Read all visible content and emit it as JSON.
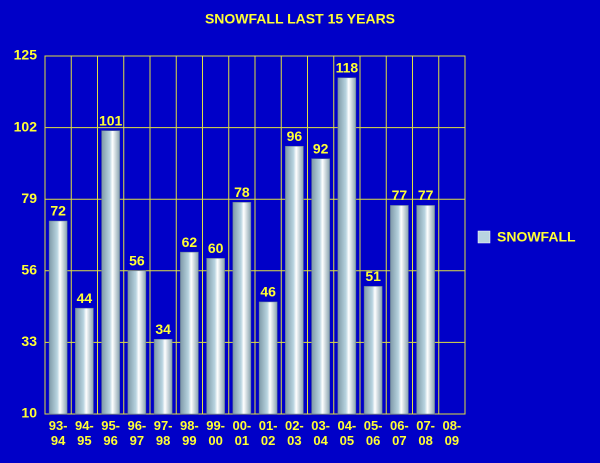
{
  "chart_data": {
    "type": "bar",
    "title": "SNOWFALL LAST 15 YEARS",
    "categories": [
      "93-94",
      "94-95",
      "95-96",
      "96-97",
      "97-98",
      "98-99",
      "99-00",
      "00-01",
      "01-02",
      "02-03",
      "03-04",
      "04-05",
      "05-06",
      "06-07",
      "07-08",
      "08-09"
    ],
    "series": [
      {
        "name": "SNOWFALL",
        "color": "#b8d4e0",
        "values": [
          72,
          44,
          101,
          56,
          34,
          62,
          60,
          78,
          46,
          96,
          92,
          118,
          51,
          77,
          77,
          null
        ]
      }
    ],
    "ylim": [
      10,
      125
    ],
    "yticks": [
      10,
      33,
      56,
      79,
      102,
      125
    ],
    "grid": true,
    "legend": "right"
  }
}
